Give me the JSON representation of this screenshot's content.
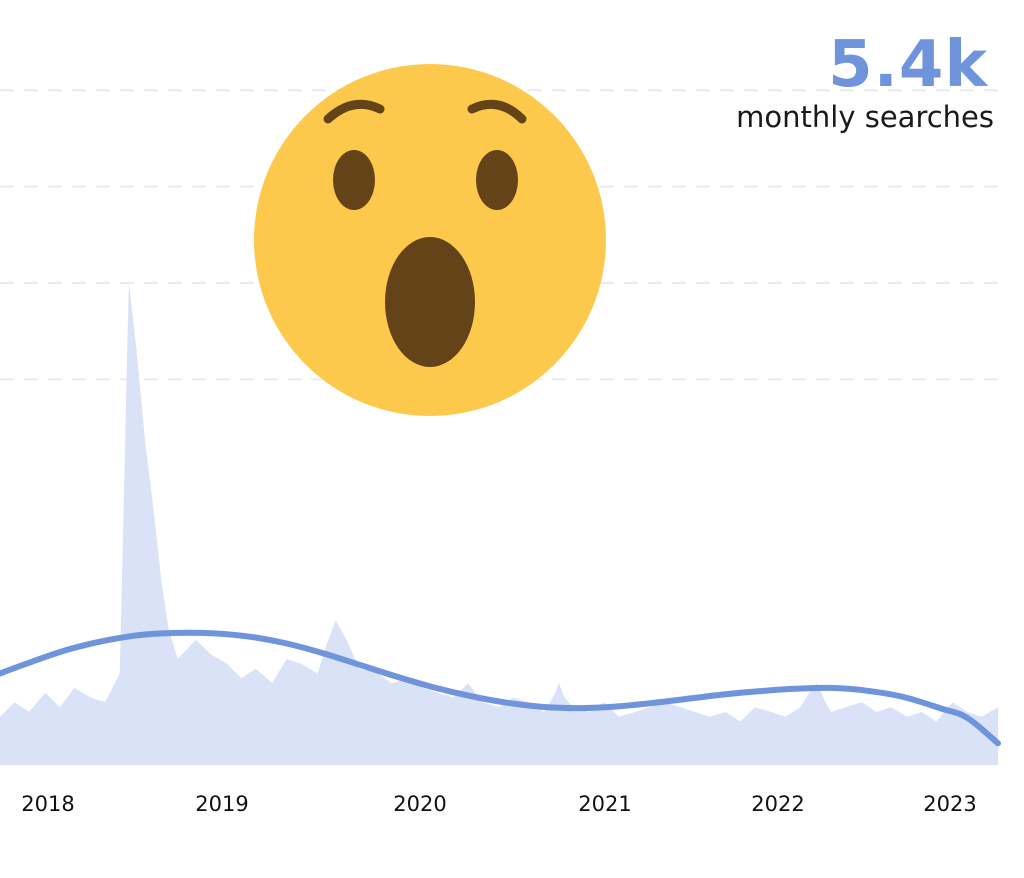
{
  "headline": {
    "value": "5.4k",
    "label": "monthly searches"
  },
  "colors": {
    "accent": "#6f94dc",
    "area_fill": "#d9e2f6",
    "gridline": "#e6ebf5",
    "emoji_face": "#fdc94d",
    "emoji_features": "#654319"
  },
  "emoji": "surprised-face",
  "chart_data": {
    "type": "area",
    "title": "",
    "xlabel": "",
    "ylabel": "",
    "x_ticks": [
      "2018",
      "2019",
      "2020",
      "2021",
      "2022",
      "2023"
    ],
    "x_range": [
      2017.72,
      2023.22
    ],
    "ylim": [
      0,
      100
    ],
    "grid": true,
    "series": [
      {
        "kind": "monthly-area",
        "x": [
          2017.72,
          2017.8,
          2017.88,
          2017.97,
          2018.05,
          2018.13,
          2018.22,
          2018.3,
          2018.38,
          2018.43,
          2018.47,
          2018.52,
          2018.56,
          2018.61,
          2018.65,
          2018.7,
          2018.75,
          2018.8,
          2018.88,
          2018.97,
          2019.05,
          2019.13,
          2019.22,
          2019.3,
          2019.38,
          2019.47,
          2019.52,
          2019.57,
          2019.63,
          2019.7,
          2019.8,
          2019.88,
          2019.97,
          2020.05,
          2020.13,
          2020.22,
          2020.3,
          2020.38,
          2020.47,
          2020.55,
          2020.63,
          2020.72,
          2020.78,
          2020.8,
          2020.83,
          2020.88,
          2020.97,
          2021.05,
          2021.13,
          2021.22,
          2021.3,
          2021.38,
          2021.47,
          2021.55,
          2021.63,
          2021.72,
          2021.8,
          2021.88,
          2021.97,
          2022.05,
          2022.13,
          2022.18,
          2022.22,
          2022.27,
          2022.3,
          2022.38,
          2022.47,
          2022.55,
          2022.63,
          2022.72,
          2022.8,
          2022.88,
          2022.97,
          2023.05,
          2023.13,
          2023.22
        ],
        "values": [
          10,
          13,
          11,
          15,
          12,
          16,
          14,
          13,
          19,
          100,
          87,
          67,
          55,
          38,
          28,
          22,
          24,
          26,
          23,
          21,
          18,
          20,
          17,
          22,
          21,
          19,
          25,
          30,
          26,
          20,
          19,
          17,
          18,
          16,
          15,
          14,
          17,
          13,
          12,
          14,
          13,
          11,
          15,
          17,
          14,
          12,
          11,
          13,
          10,
          11,
          12,
          13,
          12,
          11,
          10,
          11,
          9,
          12,
          11,
          10,
          12,
          15,
          17,
          13,
          11,
          12,
          13,
          11,
          12,
          10,
          11,
          9,
          13,
          11,
          10,
          12
        ]
      },
      {
        "kind": "trend-line",
        "x": [
          2017.72,
          2017.9,
          2018.1,
          2018.3,
          2018.5,
          2018.7,
          2018.9,
          2019.1,
          2019.3,
          2019.5,
          2019.7,
          2019.9,
          2020.1,
          2020.3,
          2020.5,
          2020.7,
          2020.9,
          2021.1,
          2021.3,
          2021.5,
          2021.7,
          2021.9,
          2022.1,
          2022.3,
          2022.5,
          2022.7,
          2022.9,
          2023.05,
          2023.22
        ],
        "values": [
          19,
          21.5,
          24,
          25.8,
          27,
          27.4,
          27.3,
          26.6,
          25.2,
          23.2,
          20.8,
          18.4,
          16.2,
          14.4,
          13,
          12.1,
          11.8,
          12.1,
          12.8,
          13.7,
          14.6,
          15.3,
          15.8,
          16,
          15.4,
          14.1,
          11.8,
          9.8,
          4.5
        ]
      }
    ]
  }
}
